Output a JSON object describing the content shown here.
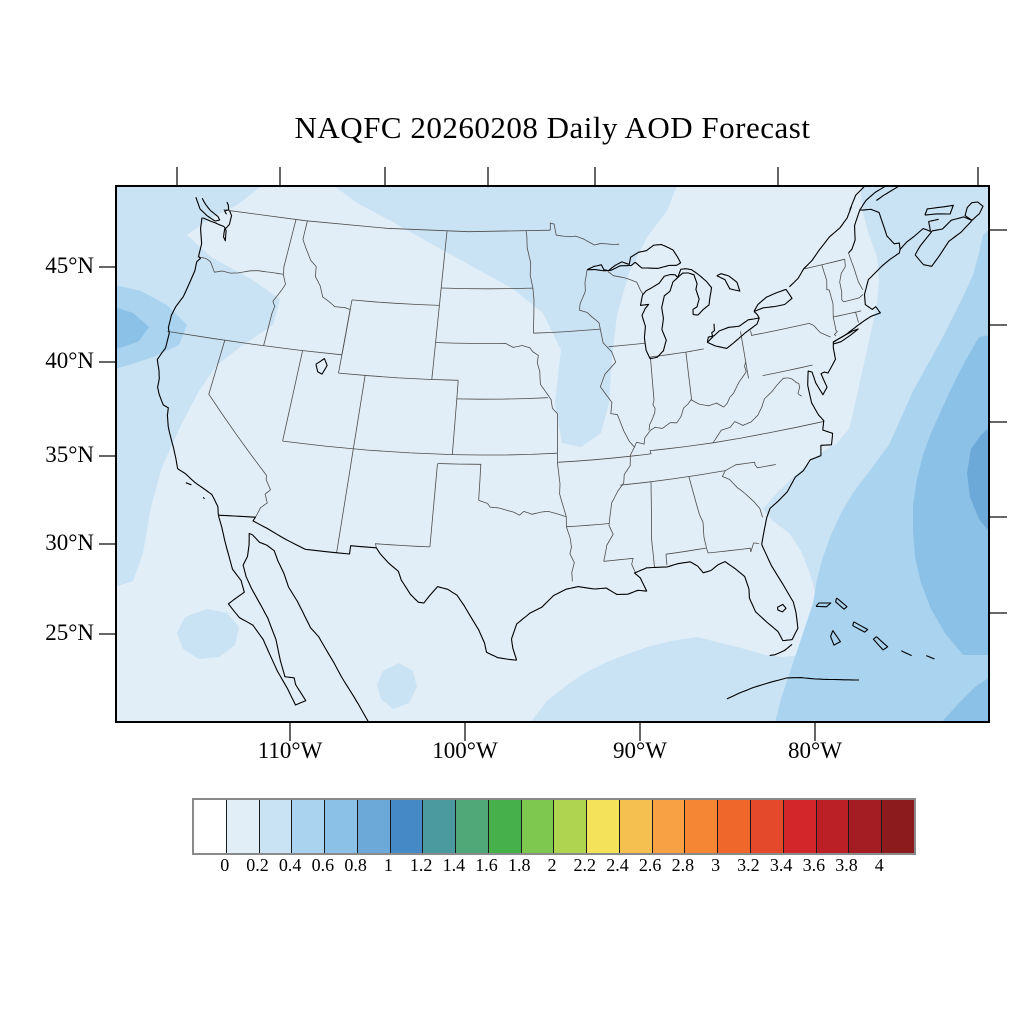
{
  "figure": {
    "title": "NAQFC 20260208 Daily AOD Forecast"
  },
  "map": {
    "lat_tick_labels": [
      "45°N",
      "40°N",
      "35°N",
      "30°N",
      "25°N"
    ],
    "lon_tick_labels": [
      "110°W",
      "100°W",
      "90°W",
      "80°W"
    ],
    "fill_levels": {
      "aod_0_02": "#E1EEF7",
      "aod_02_04": "#C9E2F4",
      "aod_04_06": "#A9D3EF",
      "aod_06_08": "#8BC0E7",
      "aod_08_10": "#6CA9D8"
    },
    "coast_color": "#000000",
    "state_border_color": "#4d4d4d"
  },
  "colorbar": {
    "tick_labels": [
      "0",
      "0.2",
      "0.4",
      "0.6",
      "0.8",
      "1",
      "1.2",
      "1.4",
      "1.6",
      "1.8",
      "2",
      "2.2",
      "2.4",
      "2.6",
      "2.8",
      "3",
      "3.2",
      "3.4",
      "3.6",
      "3.8",
      "4"
    ],
    "cell_colors": [
      "#FFFFFF",
      "#E1EEF7",
      "#C9E2F4",
      "#A9D3EF",
      "#8BC0E7",
      "#6CA9D8",
      "#4589C6",
      "#4A9A9F",
      "#50A878",
      "#46B14A",
      "#7FC850",
      "#AFD44F",
      "#F4E35A",
      "#F6C051",
      "#F7A144",
      "#F58634",
      "#F0672B",
      "#E4492C",
      "#D2262B",
      "#BA2026",
      "#A31D22",
      "#8C1B1E"
    ]
  }
}
